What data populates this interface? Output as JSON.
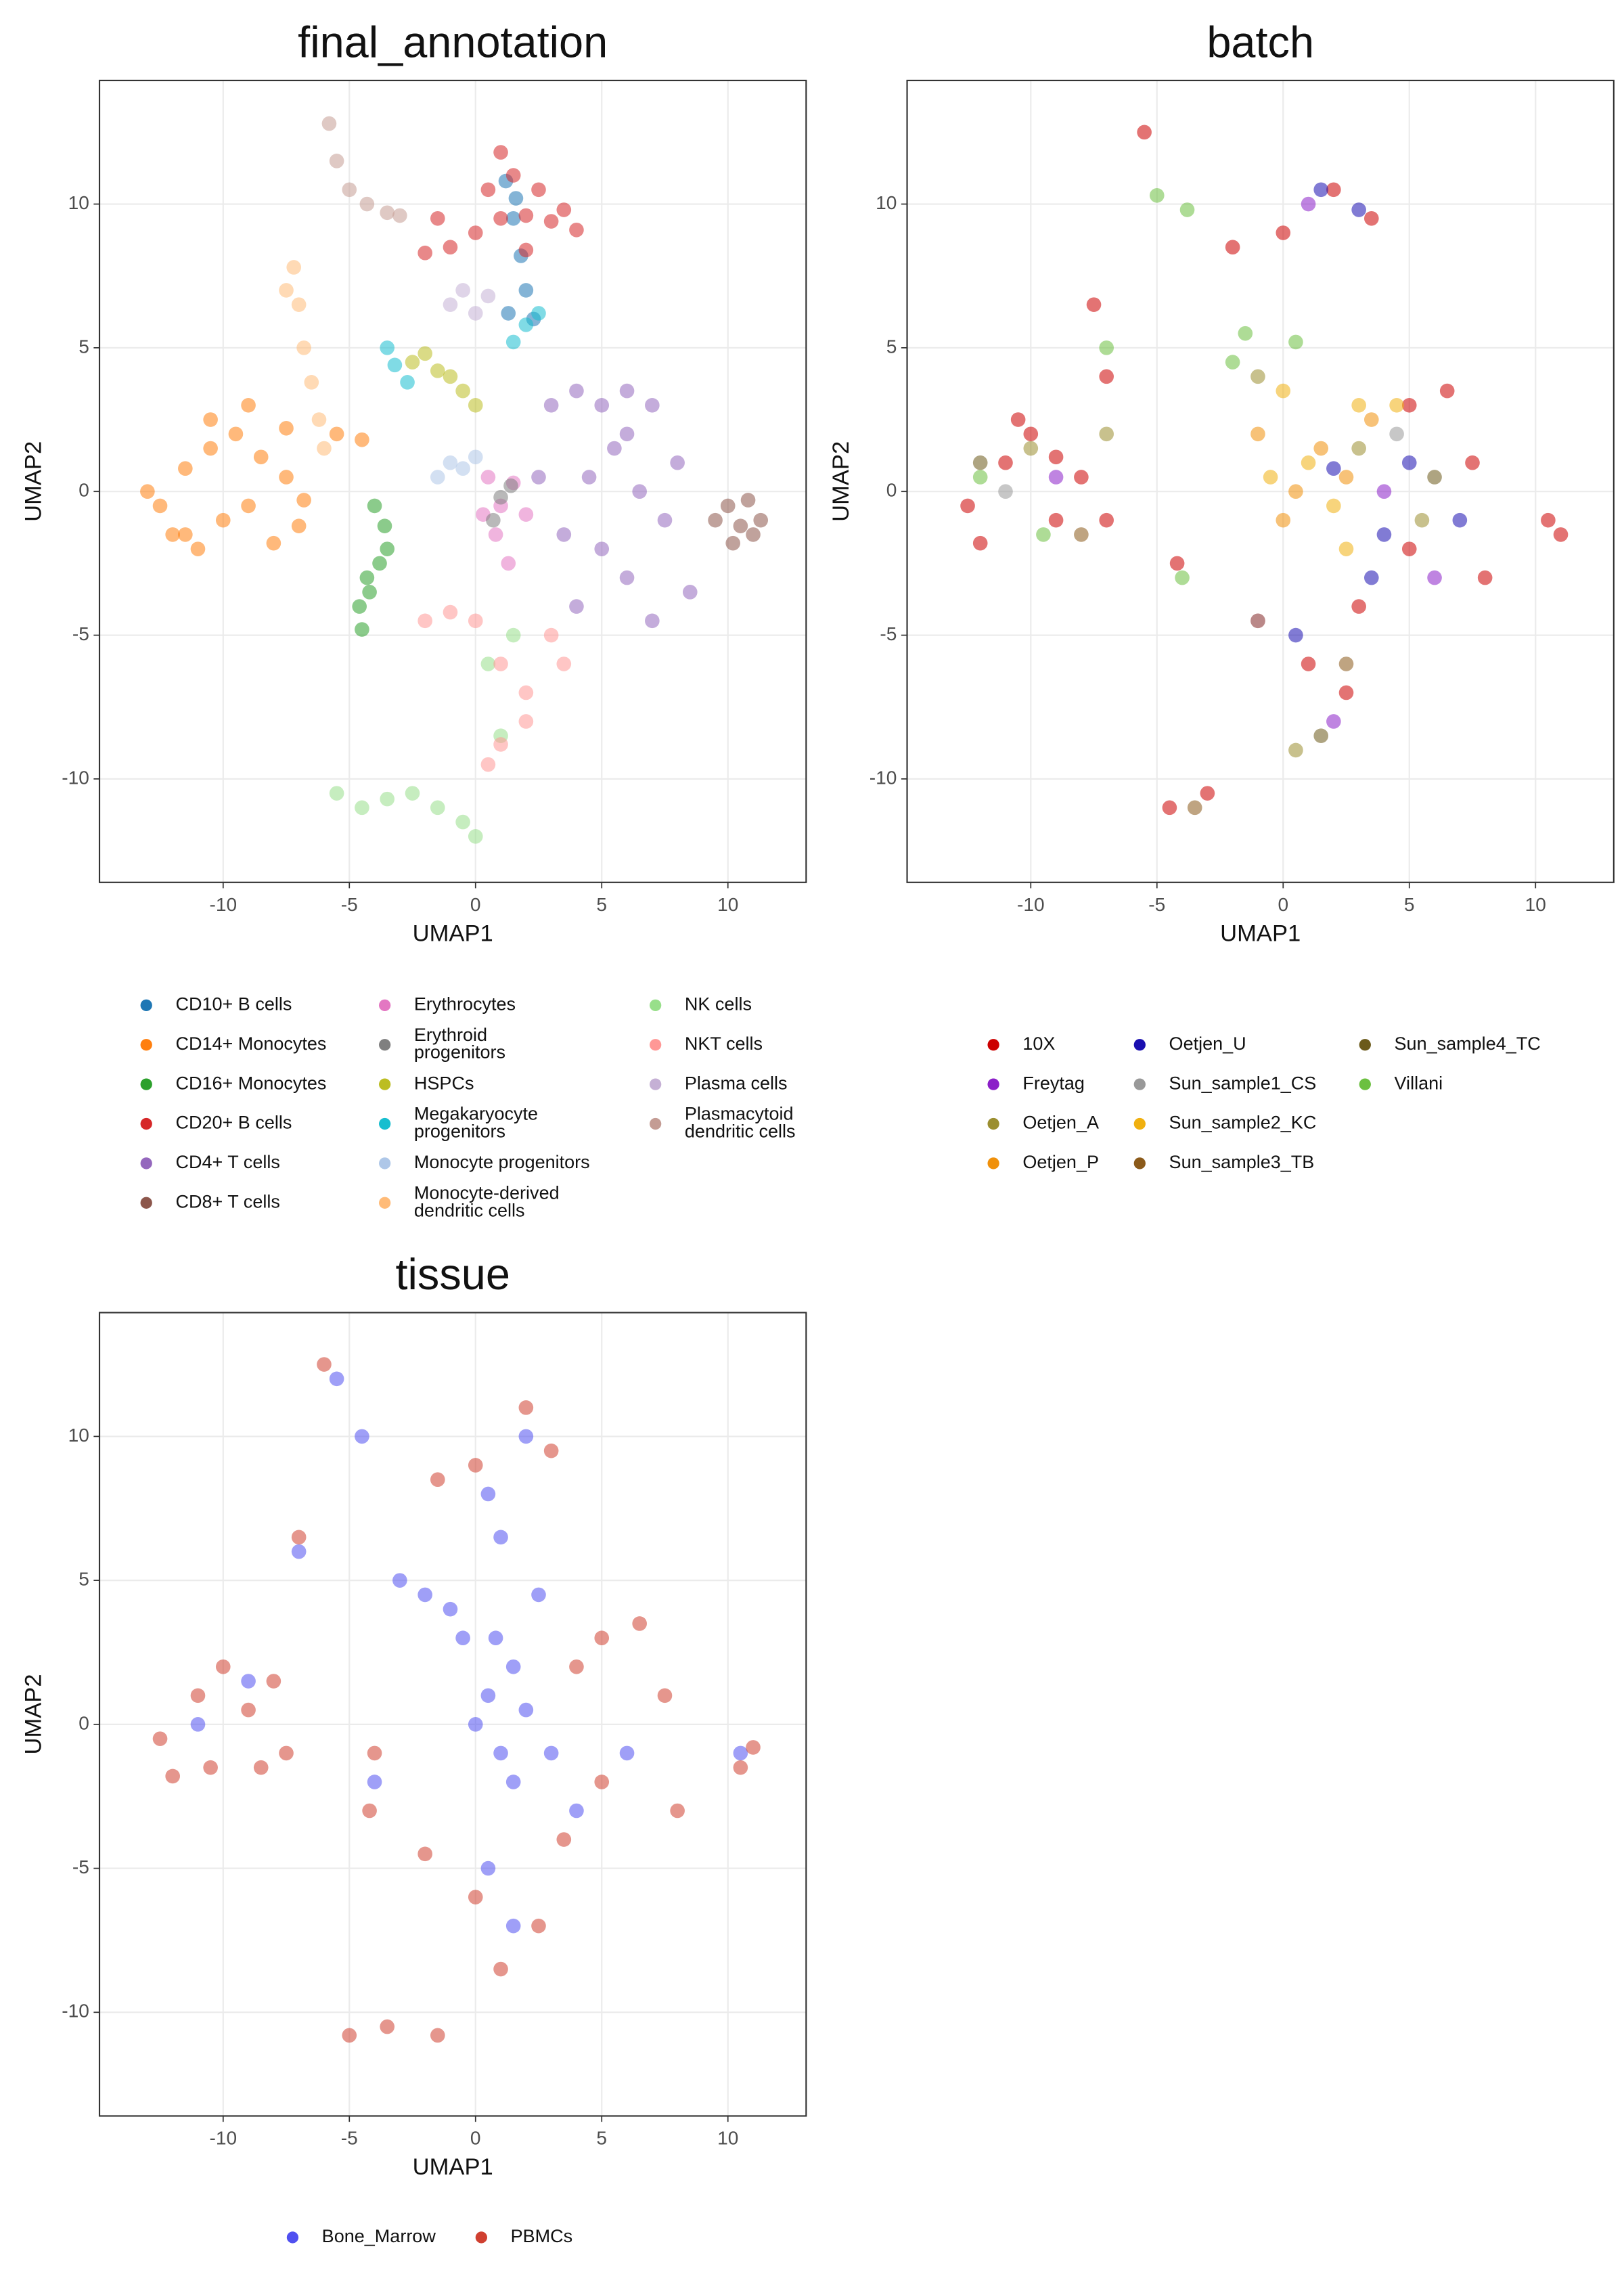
{
  "chart_data": [
    {
      "type": "scatter",
      "title": "final_annotation",
      "x_label": "UMAP1",
      "y_label": "UMAP2",
      "xlim": [
        -14.9,
        13.1
      ],
      "ylim": [
        -13.6,
        14.3
      ],
      "xticks": [
        -10,
        -5,
        0,
        5,
        10
      ],
      "yticks": [
        -10,
        -5,
        0,
        5,
        10
      ],
      "grid": true,
      "series": [
        {
          "name": "CD10+ B cells",
          "color": "#1f77b4",
          "x": [
            1.2,
            1.5,
            1.8,
            2.0,
            1.3,
            2.3,
            1.6
          ],
          "y": [
            10.8,
            9.5,
            8.2,
            7.0,
            6.2,
            6.0,
            10.2
          ]
        },
        {
          "name": "CD14+ Monocytes",
          "color": "#ff7f0e",
          "x": [
            -12.5,
            -11.5,
            -10.5,
            -9.5,
            -8.5,
            -7.5,
            -6.8,
            -12,
            -11,
            -10,
            -9,
            -8,
            -7,
            -13,
            -10.5,
            -9,
            -7.5,
            -5.5,
            -4.5,
            -11.5
          ],
          "y": [
            -0.5,
            0.8,
            1.5,
            2,
            1.2,
            0.5,
            -0.3,
            -1.5,
            -2,
            -1,
            -0.5,
            -1.8,
            -1.2,
            0,
            2.5,
            3,
            2.2,
            2,
            1.8,
            -1.5
          ]
        },
        {
          "name": "CD16+ Monocytes",
          "color": "#2ca02c",
          "x": [
            -4.5,
            -4.2,
            -3.8,
            -3.6,
            -4.6,
            -4.0,
            -3.5,
            -4.3
          ],
          "y": [
            -4.8,
            -3.5,
            -2.5,
            -1.2,
            -4,
            -0.5,
            -2,
            -3
          ]
        },
        {
          "name": "CD20+ B cells",
          "color": "#d62728",
          "x": [
            -2,
            -1,
            0,
            1,
            2,
            3,
            4,
            0.5,
            1.5,
            2.5,
            3.5,
            -1.5,
            1,
            2
          ],
          "y": [
            8.3,
            8.5,
            9,
            9.5,
            9.6,
            9.4,
            9.1,
            10.5,
            11,
            10.5,
            9.8,
            9.5,
            11.8,
            8.4
          ]
        },
        {
          "name": "CD4+ T cells",
          "color": "#9467bd",
          "x": [
            3,
            4,
            5,
            6,
            7,
            8,
            5.5,
            6.5,
            4.5,
            3.5,
            7.5,
            8.5,
            5,
            6,
            4,
            2.5,
            7,
            6
          ],
          "y": [
            3,
            3.5,
            3,
            3.5,
            3,
            1,
            1.5,
            0,
            0.5,
            -1.5,
            -1,
            -3.5,
            -2,
            -3,
            -4,
            0.5,
            -4.5,
            2
          ]
        },
        {
          "name": "CD8+ T cells",
          "color": "#8c564b",
          "x": [
            9.5,
            10,
            10.5,
            11,
            11.3,
            10.2,
            10.8
          ],
          "y": [
            -1,
            -0.5,
            -1.2,
            -1.5,
            -1,
            -1.8,
            -0.3
          ]
        },
        {
          "name": "Erythrocytes",
          "color": "#e377c2",
          "x": [
            0.5,
            1.0,
            1.5,
            0.8,
            1.3,
            2,
            0.3
          ],
          "y": [
            0.5,
            -0.5,
            0.3,
            -1.5,
            -2.5,
            -0.8,
            -0.8
          ]
        },
        {
          "name": "Erythroid\nprogenitors",
          "color": "#7f7f7f",
          "x": [
            1.0,
            1.4,
            0.7
          ],
          "y": [
            -0.2,
            0.2,
            -1
          ]
        },
        {
          "name": "HSPCs",
          "color": "#bcbd22",
          "x": [
            -2,
            -1.5,
            -1,
            -0.5,
            0,
            -2.5
          ],
          "y": [
            4.8,
            4.2,
            4,
            3.5,
            3,
            4.5
          ]
        },
        {
          "name": "Megakaryocyte\nprogenitors",
          "color": "#17becf",
          "x": [
            -3.5,
            -3.2,
            -2.7,
            1.5,
            2,
            2.5
          ],
          "y": [
            5,
            4.4,
            3.8,
            5.2,
            5.8,
            6.2
          ]
        },
        {
          "name": "Monocyte progenitors",
          "color": "#aec7e8",
          "x": [
            -1,
            -0.5,
            0,
            -1.5
          ],
          "y": [
            1,
            0.8,
            1.2,
            0.5
          ]
        },
        {
          "name": "Monocyte-derived\ndendritic cells",
          "color": "#ffbb78",
          "x": [
            -7.2,
            -7,
            -6.8,
            -6.5,
            -6.2,
            -6,
            -7.5
          ],
          "y": [
            7.8,
            6.5,
            5,
            3.8,
            2.5,
            1.5,
            7
          ]
        },
        {
          "name": "NK cells",
          "color": "#98df8a",
          "x": [
            -5.5,
            -4.5,
            -3.5,
            -2.5,
            -1.5,
            0,
            1,
            0.5,
            1.5,
            -0.5
          ],
          "y": [
            -10.5,
            -11,
            -10.7,
            -10.5,
            -11,
            -12,
            -8.5,
            -6,
            -5,
            -11.5
          ]
        },
        {
          "name": "NKT cells",
          "color": "#ff9896",
          "x": [
            -2,
            -1,
            0,
            1,
            2,
            3,
            2,
            1,
            0.5,
            3.5
          ],
          "y": [
            -4.5,
            -4.2,
            -4.5,
            -6,
            -7,
            -5,
            -8,
            -8.8,
            -9.5,
            -6
          ]
        },
        {
          "name": "Plasma cells",
          "color": "#c5b0d5",
          "x": [
            -1,
            -0.5,
            0,
            0.5
          ],
          "y": [
            6.5,
            7,
            6.2,
            6.8
          ]
        },
        {
          "name": "Plasmacytoid\ndendritic cells",
          "color": "#c49c94",
          "x": [
            -5.8,
            -5.5,
            -5,
            -4.3,
            -3.5,
            -3
          ],
          "y": [
            12.8,
            11.5,
            10.5,
            10,
            9.7,
            9.6
          ]
        }
      ]
    },
    {
      "type": "scatter",
      "title": "batch",
      "x_label": "UMAP1",
      "y_label": "UMAP2",
      "xlim": [
        -14.9,
        13.1
      ],
      "ylim": [
        -13.6,
        14.3
      ],
      "xticks": [
        -10,
        -5,
        0,
        5,
        10
      ],
      "yticks": [
        -10,
        -5,
        0,
        5,
        10
      ],
      "grid": true,
      "series": [
        {
          "name": "10X",
          "color": "#cc0000",
          "x": [
            -12.5,
            -11,
            -10,
            -9,
            -8,
            -7,
            -12,
            -10.5,
            -9,
            -7.5,
            -4.2,
            -7,
            -2,
            0,
            2,
            3.5,
            5,
            6.5,
            7.5,
            8,
            5,
            3,
            10.5,
            11,
            -4.5,
            -3,
            -1,
            1,
            2.5,
            -5.5
          ],
          "y": [
            -0.5,
            1,
            2,
            1.2,
            0.5,
            -1,
            -1.8,
            2.5,
            -1,
            6.5,
            -2.5,
            4,
            8.5,
            9,
            10.5,
            9.5,
            3,
            3.5,
            1,
            -3,
            -2,
            -4,
            -1,
            -1.5,
            -11,
            -10.5,
            -4.5,
            -6,
            -7,
            12.5
          ]
        },
        {
          "name": "Freytag",
          "color": "#8b1fc8",
          "x": [
            1,
            4,
            6,
            -9,
            2
          ],
          "y": [
            10,
            0,
            -3,
            0.5,
            -8
          ]
        },
        {
          "name": "Oetjen_A",
          "color": "#9b8e30",
          "x": [
            -10,
            -1,
            3,
            5.5,
            -7,
            0.5
          ],
          "y": [
            1.5,
            4,
            1.5,
            -1,
            2,
            -9
          ]
        },
        {
          "name": "Oetjen_P",
          "color": "#f0900a",
          "x": [
            0.5,
            1.5,
            2.5,
            0,
            3.5,
            -1
          ],
          "y": [
            0,
            1.5,
            0.5,
            -1,
            2.5,
            2
          ]
        },
        {
          "name": "Oetjen_U",
          "color": "#1a0fb0",
          "x": [
            1.5,
            3,
            4,
            5,
            3.5,
            2,
            7,
            0.5
          ],
          "y": [
            10.5,
            9.8,
            -1.5,
            1,
            -3,
            0.8,
            -1,
            -5
          ]
        },
        {
          "name": "Sun_sample1_CS",
          "color": "#999999",
          "x": [
            -11,
            4.5,
            -1
          ],
          "y": [
            0,
            2,
            -4.5
          ]
        },
        {
          "name": "Sun_sample2_KC",
          "color": "#f0b010",
          "x": [
            1,
            2,
            3,
            0,
            -0.5,
            2.5,
            4.5
          ],
          "y": [
            1,
            -0.5,
            3,
            3.5,
            0.5,
            -2,
            3
          ]
        },
        {
          "name": "Sun_sample3_TB",
          "color": "#8b5a1a",
          "x": [
            -8,
            2.5,
            -3.5
          ],
          "y": [
            -1.5,
            -6,
            -11
          ]
        },
        {
          "name": "Sun_sample4_TC",
          "color": "#6b5a1a",
          "x": [
            -12,
            6,
            1.5
          ],
          "y": [
            1,
            0.5,
            -8.5
          ]
        },
        {
          "name": "Villani",
          "color": "#6cc040",
          "x": [
            -5,
            -3.8,
            -7,
            -2,
            -1.5,
            0.5,
            -12,
            -9.5,
            -4
          ],
          "y": [
            10.3,
            9.8,
            5,
            4.5,
            5.5,
            5.2,
            0.5,
            -1.5,
            -3
          ]
        }
      ]
    },
    {
      "type": "scatter",
      "title": "tissue",
      "x_label": "UMAP1",
      "y_label": "UMAP2",
      "xlim": [
        -14.9,
        13.1
      ],
      "ylim": [
        -13.6,
        14.3
      ],
      "xticks": [
        -10,
        -5,
        0,
        5,
        10
      ],
      "yticks": [
        -10,
        -5,
        0,
        5,
        10
      ],
      "grid": true,
      "series": [
        {
          "name": "Bone_Marrow",
          "color": "#5050f0",
          "x": [
            0,
            0.5,
            1,
            1.5,
            2,
            -0.5,
            -1,
            1,
            0.5,
            2.5,
            1.5,
            -2,
            3,
            -5.5,
            -4.5,
            -7,
            -11,
            -9,
            -4,
            0.5,
            1.5,
            2,
            4,
            6,
            10.5,
            -3,
            0.8
          ],
          "y": [
            0,
            1,
            -1,
            2,
            0.5,
            3,
            4,
            6.5,
            8,
            4.5,
            -2,
            4.5,
            -1,
            12,
            10,
            6,
            0,
            1.5,
            -2,
            -5,
            -7,
            10,
            -3,
            -1,
            -1,
            5,
            3
          ]
        },
        {
          "name": "PBMCs",
          "color": "#d04030",
          "x": [
            -12.5,
            -11,
            -10,
            -9,
            -8,
            -7.5,
            -12,
            -10.5,
            -8.5,
            -7,
            -4.2,
            -4,
            -1.5,
            0,
            2,
            3,
            4,
            5,
            6.5,
            7.5,
            8,
            5,
            3.5,
            10.5,
            11,
            -5,
            -3.5,
            -2,
            0,
            1,
            2.5,
            -1.5,
            -6
          ],
          "y": [
            -0.5,
            1,
            2,
            0.5,
            1.5,
            -1,
            -1.8,
            -1.5,
            -1.5,
            6.5,
            -3,
            -1,
            8.5,
            9,
            11,
            9.5,
            2,
            3,
            3.5,
            1,
            -3,
            -2,
            -4,
            -1.5,
            -0.8,
            -10.8,
            -10.5,
            -4.5,
            -6,
            -8.5,
            -7,
            -10.8,
            12.5
          ]
        }
      ]
    }
  ]
}
